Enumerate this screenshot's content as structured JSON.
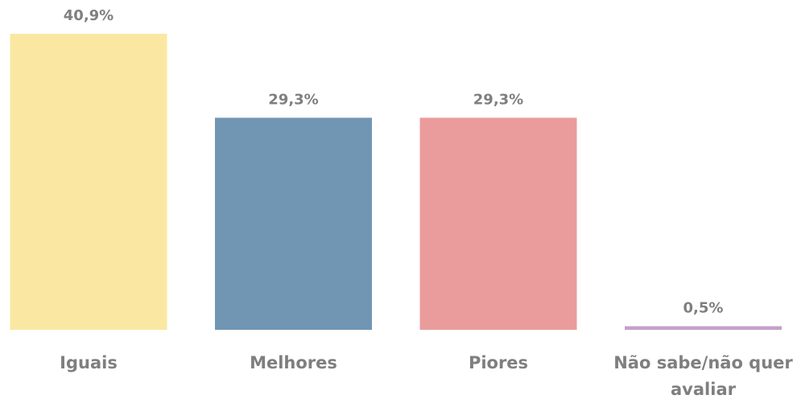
{
  "chart_data": {
    "type": "bar",
    "categories": [
      "Iguais",
      "Melhores",
      "Piores",
      "Não sabe/não quer avaliar"
    ],
    "values": [
      40.9,
      29.3,
      29.3,
      0.5
    ],
    "value_labels": [
      "40,9%",
      "29,3%",
      "29,3%",
      "0,5%"
    ],
    "colors": [
      "#fae8a2",
      "#7196b4",
      "#ea9c9c",
      "#c4a1c9"
    ],
    "ylim": [
      0,
      40.9
    ],
    "grid": false,
    "legend": false,
    "title": "",
    "xlabel": "",
    "ylabel": ""
  }
}
